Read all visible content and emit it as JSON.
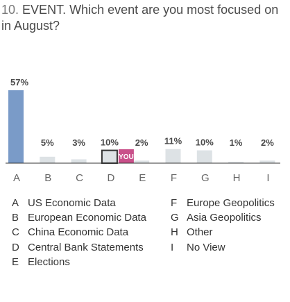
{
  "question": {
    "number": "10.",
    "text": "EVENT. Which event are you most focused on in August?"
  },
  "chart_data": {
    "type": "bar",
    "categories": [
      "A",
      "B",
      "C",
      "D",
      "E",
      "F",
      "G",
      "H",
      "I"
    ],
    "values": [
      57,
      5,
      3,
      10,
      2,
      11,
      10,
      1,
      2
    ],
    "value_labels": [
      "57%",
      "5%",
      "3%",
      "10%",
      "2%",
      "11%",
      "10%",
      "1%",
      "2%"
    ],
    "highlight_category": "A",
    "selected_category": "D",
    "selected_marker_label": "YOU",
    "ylim": [
      0,
      57
    ],
    "grid": false
  },
  "legend": {
    "left": [
      {
        "key": "A",
        "label": "US Economic Data"
      },
      {
        "key": "B",
        "label": "European Economic Data"
      },
      {
        "key": "C",
        "label": "China Economic Data"
      },
      {
        "key": "D",
        "label": "Central Bank Statements"
      },
      {
        "key": "E",
        "label": "Elections"
      }
    ],
    "right": [
      {
        "key": "F",
        "label": "Europe Geopolitics"
      },
      {
        "key": "G",
        "label": "Asia Geopolitics"
      },
      {
        "key": "H",
        "label": "Other"
      },
      {
        "key": "I",
        "label": "No View"
      }
    ]
  },
  "colors": {
    "highlight_bar": "#7a9bc8",
    "bar": "#dde2e5",
    "selected_outline": "#333333",
    "you_marker": "#c9508a",
    "axis": "#333333",
    "value_label": "#4a4a4a",
    "category_label": "#666666"
  }
}
